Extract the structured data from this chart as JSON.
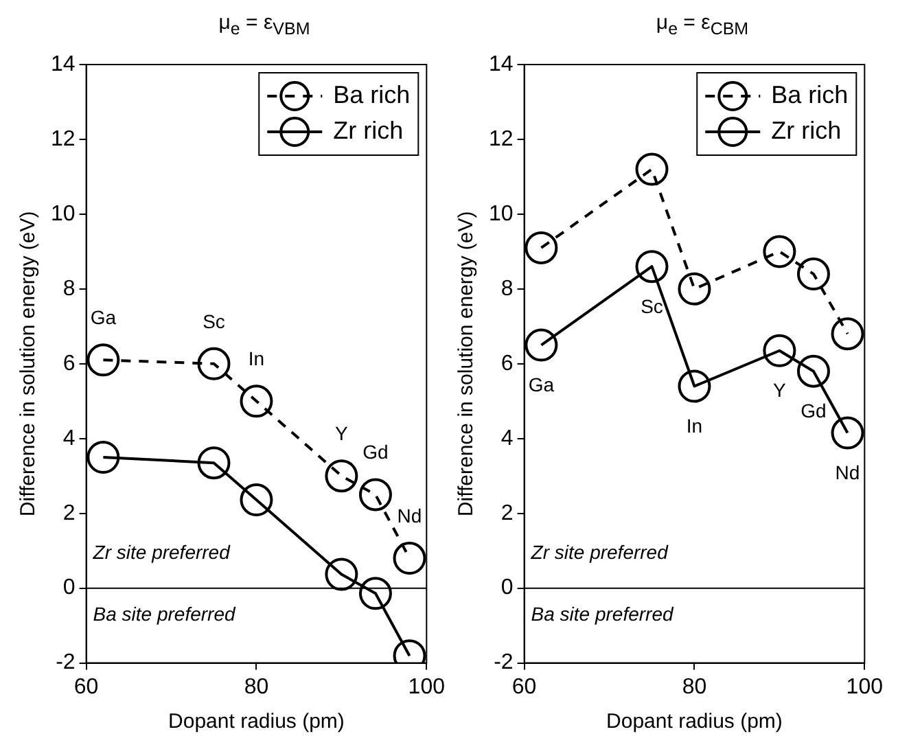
{
  "chart_data": [
    {
      "type": "line",
      "title": "μ$_{e}$ = ε$_{VBM}$",
      "xlabel": "Dopant radius (pm)",
      "ylabel": "Difference in solution energy (eV)",
      "xlim": [
        60,
        100
      ],
      "xticks": [
        60,
        80,
        100
      ],
      "ylim": [
        -2,
        14
      ],
      "yticks": [
        -2,
        0,
        2,
        4,
        6,
        8,
        10,
        12,
        14
      ],
      "grid": false,
      "legend": "top right",
      "marker": "circle",
      "series": [
        {
          "name": "Ba rich",
          "color": "#000000",
          "line_style": "dashed",
          "x": [
            62,
            75,
            80,
            90,
            94,
            98
          ],
          "values": [
            6.1,
            6.0,
            5.0,
            3.0,
            2.5,
            0.8
          ]
        },
        {
          "name": "Zr rich",
          "color": "#000000",
          "line_style": "solid",
          "x": [
            62,
            75,
            80,
            90,
            94,
            98
          ],
          "values": [
            3.5,
            3.35,
            2.36,
            0.37,
            -0.14,
            -1.81
          ]
        }
      ],
      "ref_lines": [
        {
          "axis": "y",
          "value": 0,
          "color": "#000000"
        }
      ],
      "annotations": [
        {
          "text": "Ga",
          "x": 62,
          "y": 6.1
        },
        {
          "text": "Sc",
          "x": 75,
          "y": 6.0
        },
        {
          "text": "In",
          "x": 80,
          "y": 5.0
        },
        {
          "text": "Y",
          "x": 90,
          "y": 3.0
        },
        {
          "text": "Gd",
          "x": 94,
          "y": 2.5
        },
        {
          "text": "Nd",
          "x": 98,
          "y": 0.8
        },
        "Zr site preferred",
        "Ba site preferred"
      ]
    },
    {
      "type": "line",
      "title": "μ$_{e}$ = ε$_{CBM}$",
      "xlabel": "Dopant radius (pm)",
      "ylabel": "Difference in solution energy (eV)",
      "xlim": [
        60,
        100
      ],
      "xticks": [
        60,
        80,
        100
      ],
      "ylim": [
        -2,
        14
      ],
      "yticks": [
        -2,
        0,
        2,
        4,
        6,
        8,
        10,
        12,
        14
      ],
      "grid": false,
      "legend": "top right",
      "marker": "circle",
      "series": [
        {
          "name": "Ba rich",
          "color": "#000000",
          "line_style": "dashed",
          "x": [
            62,
            75,
            80,
            90,
            94,
            98
          ],
          "values": [
            9.1,
            11.2,
            8.0,
            9.0,
            8.4,
            6.8
          ]
        },
        {
          "name": "Zr rich",
          "color": "#000000",
          "line_style": "solid",
          "x": [
            62,
            75,
            80,
            90,
            94,
            98
          ],
          "values": [
            6.5,
            8.6,
            5.4,
            6.35,
            5.8,
            4.15
          ]
        }
      ],
      "ref_lines": [
        {
          "axis": "y",
          "value": 0,
          "color": "#000000"
        }
      ],
      "annotations": [
        {
          "text": "Ga",
          "x": 62,
          "y": 6.5
        },
        {
          "text": "Sc",
          "x": 75,
          "y": 8.6
        },
        {
          "text": "In",
          "x": 80,
          "y": 5.4
        },
        {
          "text": "Y",
          "x": 90,
          "y": 6.35
        },
        {
          "text": "Gd",
          "x": 94,
          "y": 5.8
        },
        {
          "text": "Nd",
          "x": 98,
          "y": 4.15
        },
        "Zr site preferred",
        "Ba site preferred"
      ]
    }
  ]
}
